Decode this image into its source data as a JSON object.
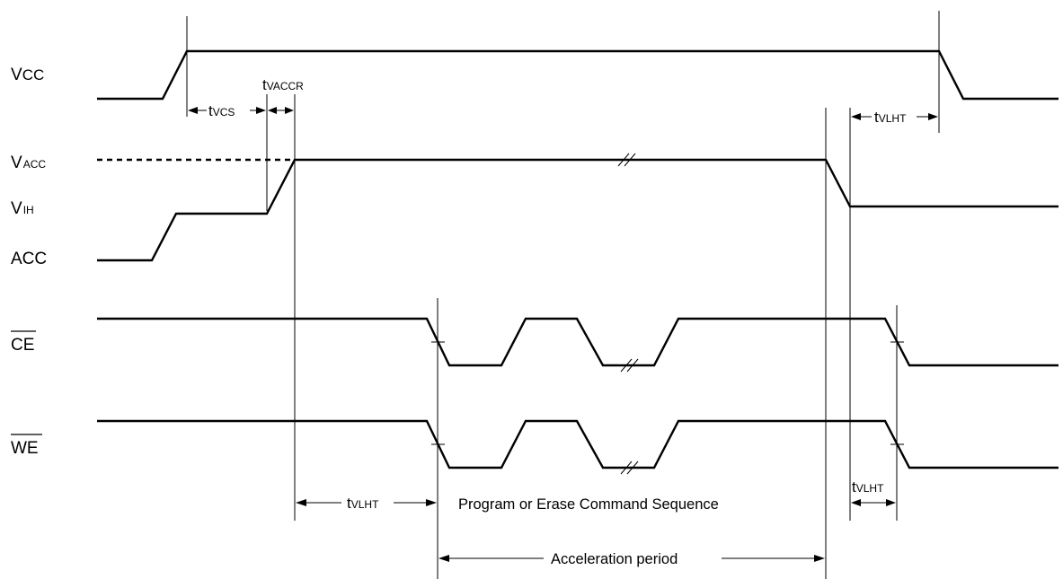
{
  "signals": {
    "vcc": {
      "prefix": "V",
      "sub": "CC"
    },
    "vacc": {
      "prefix": "V",
      "sub": "ACC"
    },
    "vih": {
      "prefix": "V",
      "sub": "IH"
    },
    "acc": "ACC",
    "ce": "CE",
    "we": "WE"
  },
  "timing": {
    "tvcs": {
      "prefix": "t",
      "sub": "VCS"
    },
    "tvaccr": {
      "prefix": "t",
      "sub": "VACCR"
    },
    "tvlht": {
      "prefix": "t",
      "sub": "VLHT"
    }
  },
  "annotations": {
    "command_sequence": "Program or Erase Command Sequence",
    "acceleration_period": "Acceleration period"
  }
}
